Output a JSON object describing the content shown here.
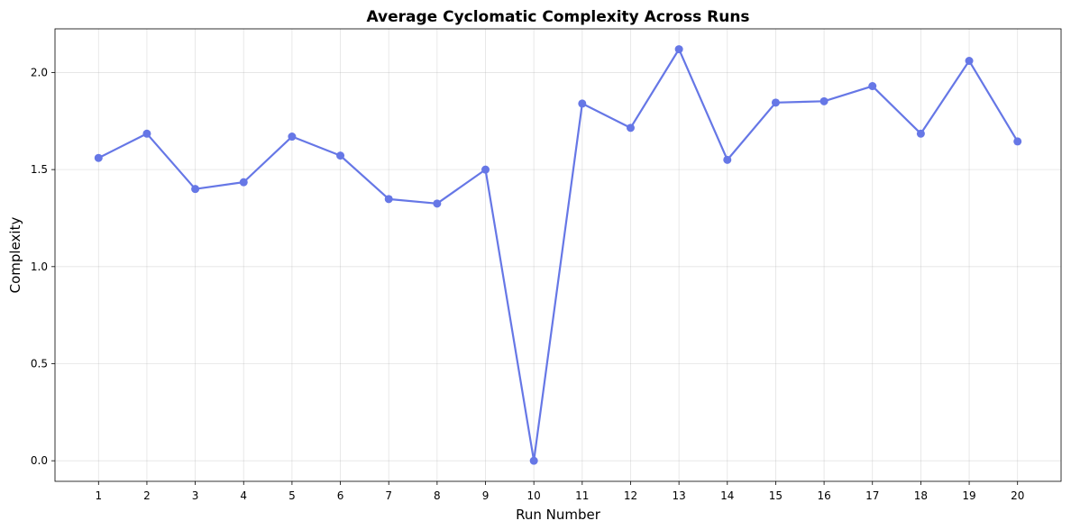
{
  "chart_data": {
    "type": "line",
    "title": "Average Cyclomatic Complexity Across Runs",
    "xlabel": "Run Number",
    "ylabel": "Complexity",
    "x": [
      1,
      2,
      3,
      4,
      5,
      6,
      7,
      8,
      9,
      10,
      11,
      12,
      13,
      14,
      15,
      16,
      17,
      18,
      19,
      20
    ],
    "x_tick_labels": [
      "1",
      "2",
      "3",
      "4",
      "5",
      "6",
      "7",
      "8",
      "9",
      "10",
      "11",
      "12",
      "13",
      "14",
      "15",
      "16",
      "17",
      "18",
      "19",
      "20"
    ],
    "y_ticks": [
      0.0,
      0.5,
      1.0,
      1.5,
      2.0
    ],
    "y_tick_labels": [
      "0.0",
      "0.5",
      "1.0",
      "1.5",
      "2.0"
    ],
    "xlim": [
      0.1,
      20.9
    ],
    "ylim": [
      -0.106,
      2.225
    ],
    "grid": true,
    "series": [
      {
        "values": [
          1.56,
          1.685,
          1.4,
          1.435,
          1.67,
          1.572,
          1.348,
          1.325,
          1.5,
          0.0,
          1.84,
          1.715,
          2.12,
          1.55,
          1.845,
          1.852,
          1.93,
          1.685,
          2.06,
          1.645
        ],
        "color": "#6677e6",
        "marker": "circle"
      }
    ]
  }
}
